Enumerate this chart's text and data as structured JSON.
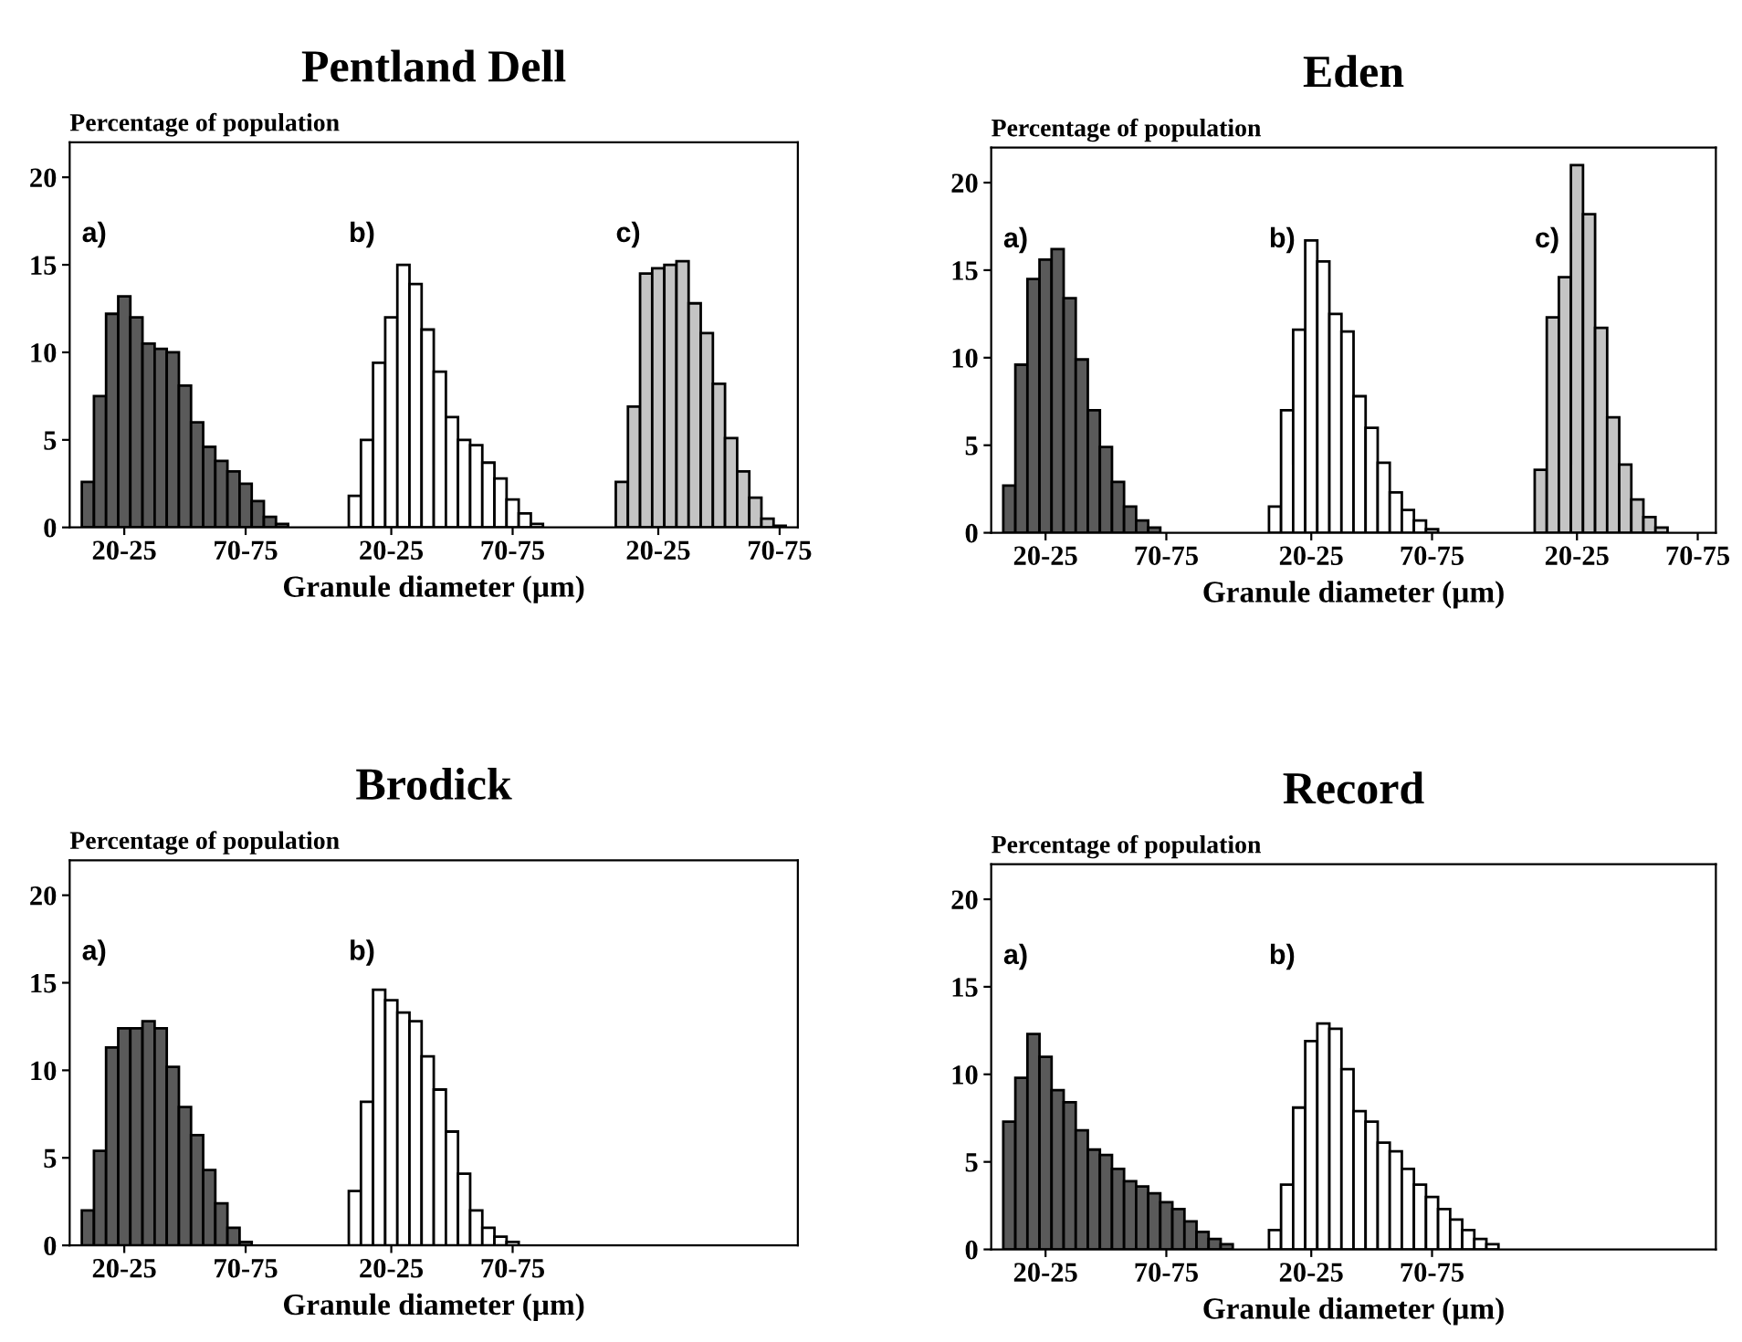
{
  "chart_data": [
    {
      "type": "bar",
      "title": "Pentland Dell",
      "ylabel": "Percentage of population",
      "xlabel": "Granule diameter (µm)",
      "categories": [
        null,
        null,
        null,
        null,
        "20-25",
        null,
        null,
        null,
        null,
        null,
        null,
        null,
        null,
        null,
        "70-75",
        null,
        null,
        null,
        null,
        null,
        null,
        null,
        null,
        null,
        null,
        null,
        "20-25",
        null,
        null,
        null,
        null,
        null,
        null,
        null,
        null,
        null,
        "70-75",
        null,
        null,
        null,
        null,
        null,
        null,
        null,
        null,
        null,
        null,
        null,
        "20-25",
        null,
        null,
        null,
        null,
        null,
        null,
        null,
        null,
        null,
        "70-75",
        null
      ],
      "series": [
        {
          "name": "a)",
          "color": "#5a5a5a",
          "values": [
            null,
            2.6,
            7.5,
            12.2,
            13.2,
            12.0,
            10.5,
            10.2,
            10.0,
            8.1,
            6.0,
            4.6,
            3.8,
            3.2,
            2.5,
            1.5,
            0.6,
            0.2,
            null,
            null,
            null,
            null,
            null,
            null,
            null,
            null,
            null,
            null,
            null,
            null,
            null,
            null,
            null,
            null,
            null,
            null,
            null,
            null,
            null,
            null,
            null,
            null,
            null,
            null,
            null,
            null,
            null,
            null,
            null,
            null,
            null,
            null,
            null,
            null,
            null,
            null,
            null,
            null,
            null,
            null
          ]
        },
        {
          "name": "b)",
          "color": "#ffffff",
          "values": [
            null,
            null,
            null,
            null,
            null,
            null,
            null,
            null,
            null,
            null,
            null,
            null,
            null,
            null,
            null,
            null,
            null,
            null,
            null,
            null,
            null,
            null,
            null,
            1.8,
            5.0,
            9.4,
            12.0,
            15.0,
            13.9,
            11.3,
            8.9,
            6.3,
            5.0,
            4.7,
            3.7,
            2.8,
            1.6,
            0.8,
            0.2,
            null,
            null,
            null,
            null,
            null,
            null,
            null,
            null,
            null,
            null,
            null,
            null,
            null,
            null,
            null,
            null,
            null,
            null,
            null,
            null,
            null
          ]
        },
        {
          "name": "c)",
          "color": "#c4c4c4",
          "values": [
            null,
            null,
            null,
            null,
            null,
            null,
            null,
            null,
            null,
            null,
            null,
            null,
            null,
            null,
            null,
            null,
            null,
            null,
            null,
            null,
            null,
            null,
            null,
            null,
            null,
            null,
            null,
            null,
            null,
            null,
            null,
            null,
            null,
            null,
            null,
            null,
            null,
            null,
            null,
            null,
            null,
            null,
            null,
            null,
            null,
            2.6,
            6.9,
            14.5,
            14.8,
            15.0,
            15.2,
            12.8,
            11.1,
            8.2,
            5.1,
            3.2,
            1.7,
            0.5,
            0.1,
            null
          ]
        }
      ],
      "ylim": [
        0,
        22
      ],
      "yticks": [
        0,
        5,
        10,
        15,
        20
      ],
      "grid": false,
      "legend": false
    },
    {
      "type": "bar",
      "title": "Eden",
      "ylabel": "Percentage of population",
      "xlabel": "Granule diameter (µm)",
      "categories": [
        null,
        null,
        null,
        null,
        "20-25",
        null,
        null,
        null,
        null,
        null,
        null,
        null,
        null,
        null,
        "70-75",
        null,
        null,
        null,
        null,
        null,
        null,
        null,
        null,
        null,
        null,
        null,
        "20-25",
        null,
        null,
        null,
        null,
        null,
        null,
        null,
        null,
        null,
        "70-75",
        null,
        null,
        null,
        null,
        null,
        null,
        null,
        null,
        null,
        null,
        null,
        "20-25",
        null,
        null,
        null,
        null,
        null,
        null,
        null,
        null,
        null,
        "70-75",
        null
      ],
      "series": [
        {
          "name": "a)",
          "color": "#5a5a5a",
          "values": [
            null,
            2.7,
            9.6,
            14.5,
            15.6,
            16.2,
            13.4,
            9.9,
            7.0,
            4.9,
            2.9,
            1.5,
            0.7,
            0.3,
            null,
            null,
            null,
            null,
            null,
            null,
            null,
            null,
            null,
            null,
            null,
            null,
            null,
            null,
            null,
            null,
            null,
            null,
            null,
            null,
            null,
            null,
            null,
            null,
            null,
            null,
            null,
            null,
            null,
            null,
            null,
            null,
            null,
            null,
            null,
            null,
            null,
            null,
            null,
            null,
            null,
            null,
            null,
            null,
            null,
            null
          ]
        },
        {
          "name": "b)",
          "color": "#ffffff",
          "values": [
            null,
            null,
            null,
            null,
            null,
            null,
            null,
            null,
            null,
            null,
            null,
            null,
            null,
            null,
            null,
            null,
            null,
            null,
            null,
            null,
            null,
            null,
            null,
            1.5,
            7.0,
            11.6,
            16.7,
            15.5,
            12.5,
            11.5,
            7.8,
            6.0,
            4.0,
            2.3,
            1.3,
            0.7,
            0.2,
            null,
            null,
            null,
            null,
            null,
            null,
            null,
            null,
            null,
            null,
            null,
            null,
            null,
            null,
            null,
            null,
            null,
            null,
            null,
            null,
            null,
            null,
            null
          ]
        },
        {
          "name": "c)",
          "color": "#c4c4c4",
          "values": [
            null,
            null,
            null,
            null,
            null,
            null,
            null,
            null,
            null,
            null,
            null,
            null,
            null,
            null,
            null,
            null,
            null,
            null,
            null,
            null,
            null,
            null,
            null,
            null,
            null,
            null,
            null,
            null,
            null,
            null,
            null,
            null,
            null,
            null,
            null,
            null,
            null,
            null,
            null,
            null,
            null,
            null,
            null,
            null,
            null,
            3.6,
            12.3,
            14.6,
            21.0,
            18.2,
            11.7,
            6.6,
            3.9,
            1.9,
            0.9,
            0.3,
            null,
            null,
            null,
            null
          ]
        }
      ],
      "ylim": [
        0,
        22
      ],
      "yticks": [
        0,
        5,
        10,
        15,
        20
      ],
      "grid": false,
      "legend": false
    },
    {
      "type": "bar",
      "title": "Brodick",
      "ylabel": "Percentage of population",
      "xlabel": "Granule diameter (µm)",
      "categories": [
        null,
        null,
        null,
        null,
        "20-25",
        null,
        null,
        null,
        null,
        null,
        null,
        null,
        null,
        null,
        "70-75",
        null,
        null,
        null,
        null,
        null,
        null,
        null,
        null,
        null,
        null,
        null,
        "20-25",
        null,
        null,
        null,
        null,
        null,
        null,
        null,
        null,
        null,
        "70-75",
        null,
        null,
        null,
        null,
        null,
        null,
        null,
        null,
        null,
        null,
        null,
        null,
        null,
        null,
        null,
        null,
        null,
        null,
        null,
        null,
        null,
        null,
        null
      ],
      "series": [
        {
          "name": "a)",
          "color": "#5a5a5a",
          "values": [
            null,
            2.0,
            5.4,
            11.3,
            12.4,
            12.4,
            12.8,
            12.4,
            10.2,
            7.9,
            6.3,
            4.3,
            2.4,
            1.0,
            0.2,
            null,
            null,
            null,
            null,
            null,
            null,
            null,
            null,
            null,
            null,
            null,
            null,
            null,
            null,
            null,
            null,
            null,
            null,
            null,
            null,
            null,
            null,
            null,
            null,
            null,
            null,
            null,
            null,
            null,
            null,
            null,
            null,
            null,
            null,
            null,
            null,
            null,
            null,
            null,
            null,
            null,
            null,
            null,
            null,
            null
          ]
        },
        {
          "name": "b)",
          "color": "#ffffff",
          "values": [
            null,
            null,
            null,
            null,
            null,
            null,
            null,
            null,
            null,
            null,
            null,
            null,
            null,
            null,
            null,
            null,
            null,
            null,
            null,
            null,
            null,
            null,
            null,
            3.1,
            8.2,
            14.6,
            14.0,
            13.3,
            12.8,
            10.8,
            8.9,
            6.5,
            4.1,
            2.0,
            1.0,
            0.5,
            0.2,
            null,
            null,
            null,
            null,
            null,
            null,
            null,
            null,
            null,
            null,
            null,
            null,
            null,
            null,
            null,
            null,
            null,
            null,
            null,
            null,
            null,
            null,
            null
          ]
        }
      ],
      "ylim": [
        0,
        22
      ],
      "yticks": [
        0,
        5,
        10,
        15,
        20
      ],
      "grid": false,
      "legend": false
    },
    {
      "type": "bar",
      "title": "Record",
      "ylabel": "Percentage of population",
      "xlabel": "Granule diameter (µm)",
      "categories": [
        null,
        null,
        null,
        null,
        "20-25",
        null,
        null,
        null,
        null,
        null,
        null,
        null,
        null,
        null,
        "70-75",
        null,
        null,
        null,
        null,
        null,
        null,
        null,
        null,
        null,
        null,
        null,
        "20-25",
        null,
        null,
        null,
        null,
        null,
        null,
        null,
        null,
        null,
        "70-75",
        null,
        null,
        null,
        null,
        null,
        null,
        null,
        null,
        null,
        null,
        null,
        null,
        null,
        null,
        null,
        null,
        null,
        null,
        null,
        null,
        null,
        null,
        null
      ],
      "series": [
        {
          "name": "a)",
          "color": "#5a5a5a",
          "values": [
            null,
            7.3,
            9.8,
            12.3,
            11.0,
            9.1,
            8.4,
            6.8,
            5.7,
            5.4,
            4.6,
            3.9,
            3.6,
            3.2,
            2.7,
            2.3,
            1.6,
            1.0,
            0.6,
            0.3,
            null,
            null,
            null,
            null,
            null,
            null,
            null,
            null,
            null,
            null,
            null,
            null,
            null,
            null,
            null,
            null,
            null,
            null,
            null,
            null,
            null,
            null,
            null,
            null,
            null,
            null,
            null,
            null,
            null,
            null,
            null,
            null,
            null,
            null,
            null,
            null,
            null,
            null,
            null,
            null
          ]
        },
        {
          "name": "b)",
          "color": "#ffffff",
          "values": [
            null,
            null,
            null,
            null,
            null,
            null,
            null,
            null,
            null,
            null,
            null,
            null,
            null,
            null,
            null,
            null,
            null,
            null,
            null,
            null,
            null,
            null,
            null,
            1.1,
            3.7,
            8.1,
            11.9,
            12.9,
            12.6,
            10.3,
            7.9,
            7.3,
            6.1,
            5.6,
            4.6,
            3.7,
            3.0,
            2.3,
            1.7,
            1.1,
            0.6,
            0.3,
            null,
            null,
            null,
            null,
            null,
            null,
            null,
            null,
            null,
            null,
            null,
            null,
            null,
            null,
            null,
            null,
            null,
            null
          ]
        }
      ],
      "ylim": [
        0,
        22
      ],
      "yticks": [
        0,
        5,
        10,
        15,
        20
      ],
      "grid": false,
      "legend": false
    }
  ]
}
